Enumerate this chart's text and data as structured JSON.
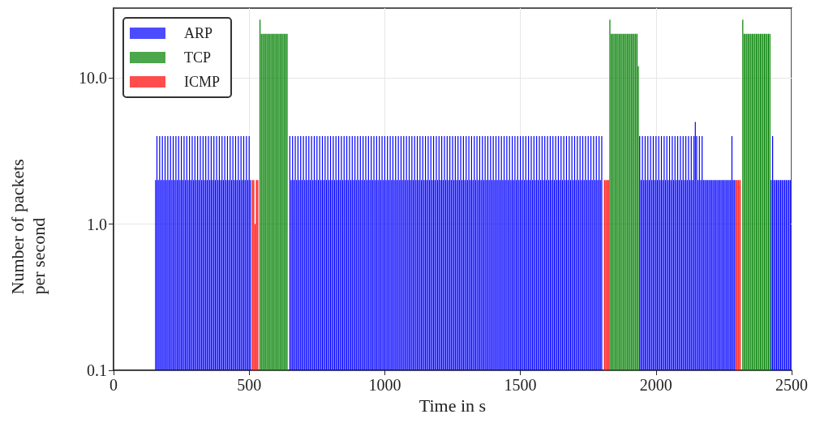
{
  "chart_data": {
    "type": "bar",
    "xlabel": "Time in s",
    "ylabel": "Number of packets per second",
    "xlim": [
      0,
      2500
    ],
    "xticks": [
      0,
      500,
      1000,
      1500,
      2000,
      2500
    ],
    "ylim": [
      0.1,
      30
    ],
    "yticks": [
      0.1,
      {
        "value": 1,
        "label": "1.0"
      },
      {
        "value": 10,
        "label": "10.0"
      }
    ],
    "log": "y",
    "grid": true,
    "legend": "top left",
    "series": [
      {
        "name": "ARP",
        "color": "#0000ff",
        "x": [
          155,
          160,
          165,
          170,
          175,
          180,
          185,
          190,
          195,
          200,
          205,
          210,
          215,
          220,
          225,
          230,
          235,
          240,
          245,
          250,
          255,
          260,
          265,
          270,
          275,
          280,
          285,
          290,
          295,
          300,
          305,
          310,
          315,
          320,
          325,
          330,
          335,
          340,
          345,
          350,
          355,
          360,
          365,
          370,
          375,
          380,
          385,
          390,
          395,
          400,
          405,
          410,
          415,
          420,
          425,
          430,
          435,
          440,
          445,
          450,
          455,
          460,
          465,
          470,
          475,
          480,
          485,
          490,
          495,
          500,
          505,
          650,
          655,
          660,
          665,
          670,
          675,
          680,
          685,
          690,
          695,
          700,
          705,
          710,
          715,
          720,
          725,
          730,
          735,
          740,
          745,
          750,
          755,
          760,
          765,
          770,
          775,
          780,
          785,
          790,
          795,
          800,
          805,
          810,
          815,
          820,
          825,
          830,
          835,
          840,
          845,
          850,
          855,
          860,
          865,
          870,
          875,
          880,
          885,
          890,
          895,
          900,
          905,
          910,
          915,
          920,
          925,
          930,
          935,
          940,
          945,
          950,
          955,
          960,
          965,
          970,
          975,
          980,
          985,
          990,
          995,
          1000,
          1005,
          1010,
          1015,
          1020,
          1025,
          1030,
          1035,
          1040,
          1045,
          1050,
          1055,
          1060,
          1065,
          1070,
          1075,
          1080,
          1085,
          1090,
          1095,
          1100,
          1105,
          1110,
          1115,
          1120,
          1125,
          1130,
          1135,
          1140,
          1145,
          1150,
          1155,
          1160,
          1165,
          1170,
          1175,
          1180,
          1185,
          1190,
          1195,
          1200,
          1205,
          1210,
          1215,
          1220,
          1225,
          1230,
          1235,
          1240,
          1245,
          1250,
          1255,
          1260,
          1265,
          1270,
          1275,
          1280,
          1285,
          1290,
          1295,
          1300,
          1305,
          1310,
          1315,
          1320,
          1325,
          1330,
          1335,
          1340,
          1345,
          1350,
          1355,
          1360,
          1365,
          1370,
          1375,
          1380,
          1385,
          1390,
          1395,
          1400,
          1405,
          1410,
          1415,
          1420,
          1425,
          1430,
          1435,
          1440,
          1445,
          1450,
          1455,
          1460,
          1465,
          1470,
          1475,
          1480,
          1485,
          1490,
          1495,
          1500,
          1505,
          1510,
          1515,
          1520,
          1525,
          1530,
          1535,
          1540,
          1545,
          1550,
          1555,
          1560,
          1565,
          1570,
          1575,
          1580,
          1585,
          1590,
          1595,
          1600,
          1605,
          1610,
          1615,
          1620,
          1625,
          1630,
          1635,
          1640,
          1645,
          1650,
          1655,
          1660,
          1665,
          1670,
          1675,
          1680,
          1685,
          1690,
          1695,
          1700,
          1705,
          1710,
          1715,
          1720,
          1725,
          1730,
          1735,
          1740,
          1745,
          1750,
          1755,
          1760,
          1765,
          1770,
          1775,
          1780,
          1785,
          1790,
          1795,
          1800,
          1940,
          1945,
          1950,
          1955,
          1960,
          1965,
          1970,
          1975,
          1980,
          1985,
          1990,
          1995,
          2000,
          2005,
          2010,
          2015,
          2020,
          2025,
          2030,
          2035,
          2040,
          2045,
          2050,
          2055,
          2060,
          2065,
          2070,
          2075,
          2080,
          2085,
          2090,
          2095,
          2100,
          2105,
          2110,
          2115,
          2120,
          2125,
          2130,
          2135,
          2140,
          2145,
          2150,
          2155,
          2160,
          2165,
          2170,
          2175,
          2180,
          2185,
          2190,
          2195,
          2200,
          2205,
          2210,
          2215,
          2220,
          2225,
          2230,
          2235,
          2240,
          2245,
          2250,
          2255,
          2260,
          2265,
          2270,
          2275,
          2280,
          2285,
          2290,
          2425,
          2430,
          2435,
          2440,
          2445,
          2450,
          2455,
          2460,
          2465,
          2470,
          2475,
          2480,
          2485,
          2490,
          2495
        ],
        "values": [
          2,
          4,
          2,
          4,
          2,
          4,
          2,
          4,
          2,
          4,
          2,
          4,
          2,
          4,
          2,
          4,
          2,
          4,
          2,
          4,
          2,
          4,
          2,
          4,
          2,
          4,
          2,
          4,
          2,
          4,
          2,
          4,
          2,
          4,
          2,
          4,
          2,
          4,
          2,
          4,
          2,
          4,
          2,
          4,
          2,
          4,
          2,
          4,
          2,
          4,
          2,
          4,
          2,
          4,
          2,
          4,
          2,
          4,
          2,
          4,
          2,
          4,
          2,
          4,
          2,
          4,
          2,
          4,
          2,
          4,
          2,
          4,
          2,
          4,
          2,
          4,
          2,
          4,
          2,
          4,
          2,
          4,
          2,
          4,
          2,
          4,
          2,
          4,
          2,
          4,
          2,
          4,
          2,
          4,
          2,
          4,
          2,
          4,
          2,
          4,
          2,
          4,
          2,
          4,
          2,
          4,
          2,
          4,
          2,
          4,
          2,
          4,
          2,
          4,
          2,
          4,
          2,
          4,
          2,
          4,
          2,
          4,
          2,
          4,
          2,
          4,
          2,
          4,
          2,
          4,
          2,
          4,
          2,
          4,
          2,
          4,
          2,
          4,
          2,
          4,
          2,
          4,
          2,
          4,
          2,
          4,
          2,
          4,
          2,
          4,
          2,
          4,
          2,
          4,
          2,
          4,
          2,
          4,
          2,
          4,
          2,
          4,
          2,
          4,
          2,
          4,
          2,
          4,
          2,
          4,
          2,
          4,
          2,
          4,
          2,
          4,
          2,
          4,
          2,
          4,
          2,
          4,
          2,
          4,
          2,
          4,
          2,
          4,
          2,
          4,
          2,
          4,
          2,
          4,
          2,
          4,
          2,
          4,
          2,
          4,
          2,
          4,
          2,
          4,
          2,
          4,
          2,
          4,
          2,
          4,
          2,
          4,
          2,
          4,
          2,
          4,
          2,
          4,
          2,
          4,
          2,
          4,
          2,
          4,
          2,
          4,
          2,
          4,
          2,
          4,
          2,
          4,
          2,
          4,
          2,
          4,
          2,
          4,
          2,
          4,
          2,
          4,
          2,
          4,
          2,
          4,
          2,
          4,
          2,
          4,
          2,
          4,
          2,
          4,
          2,
          4,
          2,
          4,
          2,
          4,
          2,
          4,
          2,
          4,
          2,
          4,
          2,
          4,
          2,
          4,
          2,
          4,
          2,
          4,
          2,
          4,
          2,
          4,
          2,
          4,
          2,
          4,
          2,
          4,
          2,
          4,
          2,
          4,
          2,
          4,
          2,
          4,
          2,
          4,
          2,
          4,
          2,
          4,
          2,
          4,
          2,
          4,
          4,
          2,
          4,
          2,
          4,
          2,
          4,
          2,
          4,
          2,
          4,
          2,
          4,
          2,
          4,
          2,
          4,
          2,
          4,
          2,
          4,
          2,
          4,
          2,
          4,
          2,
          4,
          2,
          4,
          2,
          4,
          2,
          4,
          2,
          4,
          2,
          4,
          2,
          4,
          2,
          4,
          5,
          4,
          2,
          4,
          2,
          4,
          2,
          2,
          2,
          2,
          2,
          2,
          2,
          2,
          2,
          2,
          2,
          2,
          2,
          2,
          2,
          2,
          2,
          2,
          2,
          2,
          2,
          4,
          2,
          2,
          2,
          4,
          2,
          2,
          2,
          2,
          2,
          2,
          2,
          2,
          2,
          2,
          2,
          2,
          2
        ]
      },
      {
        "name": "TCP",
        "color": "#008000",
        "x": [
          540,
          545,
          550,
          555,
          560,
          565,
          570,
          575,
          580,
          585,
          590,
          595,
          600,
          605,
          610,
          615,
          620,
          625,
          630,
          635,
          640,
          1830,
          1835,
          1840,
          1845,
          1850,
          1855,
          1860,
          1865,
          1870,
          1875,
          1880,
          1885,
          1890,
          1895,
          1900,
          1905,
          1910,
          1915,
          1920,
          1925,
          1930,
          1935,
          2320,
          2325,
          2330,
          2335,
          2340,
          2345,
          2350,
          2355,
          2360,
          2365,
          2370,
          2375,
          2380,
          2385,
          2390,
          2395,
          2400,
          2405,
          2410,
          2415,
          2420
        ],
        "values": [
          25,
          20,
          20,
          20,
          20,
          20,
          20,
          20,
          20,
          20,
          20,
          20,
          20,
          20,
          20,
          20,
          20,
          20,
          20,
          20,
          20,
          25,
          20,
          20,
          20,
          20,
          20,
          20,
          20,
          20,
          20,
          20,
          20,
          20,
          20,
          20,
          20,
          20,
          20,
          20,
          20,
          20,
          12,
          25,
          20,
          20,
          20,
          20,
          20,
          20,
          20,
          20,
          20,
          20,
          20,
          20,
          20,
          20,
          20,
          20,
          20,
          20,
          20,
          20
        ]
      },
      {
        "name": "ICMP",
        "color": "#ff0000",
        "x": [
          512,
          517,
          522,
          527,
          532,
          1810,
          1815,
          1820,
          1825,
          2295,
          2300,
          2305,
          2310
        ],
        "values": [
          2,
          2,
          1,
          2,
          2,
          2,
          2,
          2,
          2,
          2,
          2,
          2,
          2
        ]
      }
    ]
  }
}
